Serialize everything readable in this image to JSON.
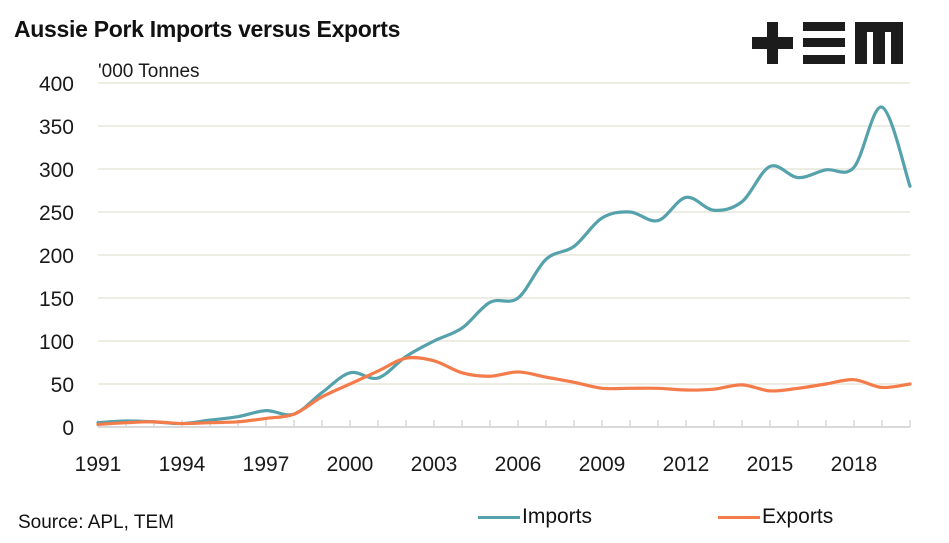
{
  "title": "Aussie Pork Imports versus Exports",
  "logo": {
    "icon": "tem-logo",
    "text": "+EM"
  },
  "source": "Source: APL, TEM",
  "colors": {
    "imports": "#55A1AC",
    "exports": "#F47B4A",
    "grid": "#EDEDE3",
    "axis": "#D9D9D9"
  },
  "chart_data": {
    "type": "line",
    "title": "Aussie Pork Imports versus Exports",
    "ylabel": "'000 Tonnes",
    "xlabel": "",
    "ylim": [
      0,
      400
    ],
    "yticks": [
      0,
      50,
      100,
      150,
      200,
      250,
      300,
      350,
      400
    ],
    "xtick_labels": [
      "1991",
      "1994",
      "1997",
      "2000",
      "2003",
      "2006",
      "2009",
      "2012",
      "2015",
      "2018"
    ],
    "grid": true,
    "legend_position": "bottom",
    "x": [
      1991,
      1992,
      1993,
      1994,
      1995,
      1996,
      1997,
      1998,
      1999,
      2000,
      2001,
      2002,
      2003,
      2004,
      2005,
      2006,
      2007,
      2008,
      2009,
      2010,
      2011,
      2012,
      2013,
      2014,
      2015,
      2016,
      2017,
      2018,
      2019,
      2020
    ],
    "series": [
      {
        "name": "Imports",
        "values": [
          5,
          7,
          6,
          4,
          8,
          12,
          19,
          15,
          40,
          63,
          57,
          82,
          100,
          115,
          145,
          150,
          195,
          210,
          243,
          250,
          240,
          267,
          252,
          262,
          303,
          290,
          299,
          302,
          372,
          280
        ]
      },
      {
        "name": "Exports",
        "values": [
          3,
          5,
          6,
          4,
          5,
          6,
          10,
          15,
          35,
          50,
          65,
          80,
          77,
          63,
          59,
          64,
          58,
          52,
          45,
          45,
          45,
          43,
          44,
          49,
          42,
          45,
          50,
          55,
          46,
          50
        ]
      }
    ]
  }
}
